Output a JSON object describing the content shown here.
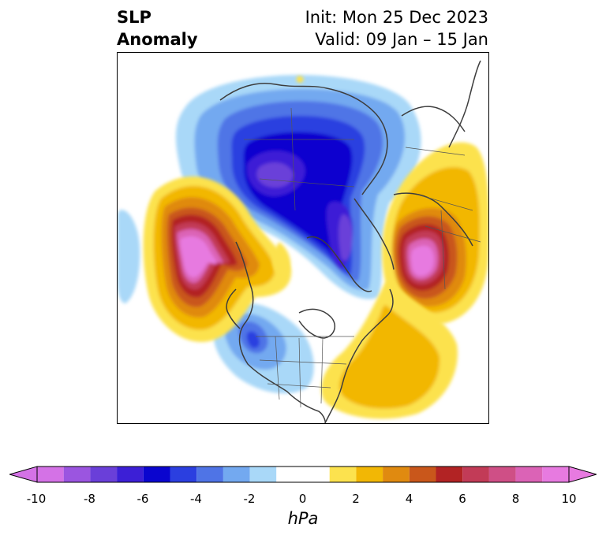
{
  "header": {
    "title_line1": "SLP",
    "title_line2": "Anomaly",
    "init": "Init: Mon 25 Dec 2023",
    "valid": "Valid: 09 Jan – 15 Jan"
  },
  "colorbar": {
    "units": "hPa",
    "min": -10,
    "max": 10,
    "tick_labels": [
      "-10",
      "-8",
      "-6",
      "-4",
      "-2",
      "0",
      "2",
      "4",
      "6",
      "8",
      "10"
    ],
    "bins": [
      {
        "from": -10,
        "to": -9,
        "color": "#d472e6"
      },
      {
        "from": -9,
        "to": -8,
        "color": "#9b55e0"
      },
      {
        "from": -8,
        "to": -7,
        "color": "#6a3fd9"
      },
      {
        "from": -7,
        "to": -6,
        "color": "#3c1fd6"
      },
      {
        "from": -6,
        "to": -5,
        "color": "#0a05cf"
      },
      {
        "from": -5,
        "to": -4,
        "color": "#2b3fe0"
      },
      {
        "from": -4,
        "to": -3,
        "color": "#4f74e6"
      },
      {
        "from": -3,
        "to": -2,
        "color": "#73a9f0"
      },
      {
        "from": -2,
        "to": -1,
        "color": "#a9d8f8"
      },
      {
        "from": -1,
        "to": 1,
        "color": "#ffffff"
      },
      {
        "from": 1,
        "to": 2,
        "color": "#fce24e"
      },
      {
        "from": 2,
        "to": 3,
        "color": "#f2b705"
      },
      {
        "from": 3,
        "to": 4,
        "color": "#e08a10"
      },
      {
        "from": 4,
        "to": 5,
        "color": "#c9571b"
      },
      {
        "from": 5,
        "to": 6,
        "color": "#b22324"
      },
      {
        "from": 6,
        "to": 7,
        "color": "#c23b57"
      },
      {
        "from": 7,
        "to": 8,
        "color": "#cf4f86"
      },
      {
        "from": 8,
        "to": 9,
        "color": "#db63b6"
      },
      {
        "from": 9,
        "to": 10,
        "color": "#e77ae0"
      }
    ],
    "extend_low_color": "#d472e6",
    "extend_high_color": "#e77ae0"
  },
  "map": {
    "projection": "north-polar-stereographic",
    "field": "sea-level-pressure-anomaly",
    "features": [
      "coastlines",
      "country-borders",
      "state-province-borders"
    ]
  }
}
